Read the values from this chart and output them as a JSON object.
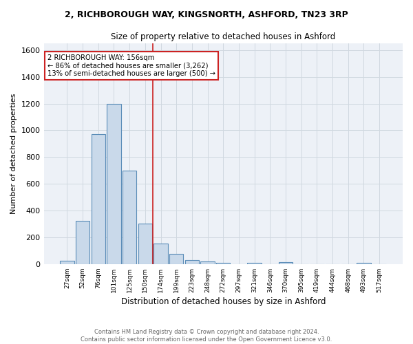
{
  "title_line1": "2, RICHBOROUGH WAY, KINGSNORTH, ASHFORD, TN23 3RP",
  "title_line2": "Size of property relative to detached houses in Ashford",
  "xlabel": "Distribution of detached houses by size in Ashford",
  "ylabel": "Number of detached properties",
  "footer_line1": "Contains HM Land Registry data © Crown copyright and database right 2024.",
  "footer_line2": "Contains public sector information licensed under the Open Government Licence v3.0.",
  "bar_labels": [
    "27sqm",
    "52sqm",
    "76sqm",
    "101sqm",
    "125sqm",
    "150sqm",
    "174sqm",
    "199sqm",
    "223sqm",
    "248sqm",
    "272sqm",
    "297sqm",
    "321sqm",
    "346sqm",
    "370sqm",
    "395sqm",
    "419sqm",
    "444sqm",
    "468sqm",
    "493sqm",
    "517sqm"
  ],
  "bar_values": [
    25,
    325,
    970,
    1200,
    700,
    305,
    155,
    75,
    30,
    18,
    10,
    0,
    10,
    0,
    12,
    0,
    0,
    0,
    0,
    10,
    0
  ],
  "bar_color": "#c9d9ea",
  "bar_edge_color": "#5b8db8",
  "grid_color": "#d0d8e0",
  "background_color": "#edf1f7",
  "vline_x": 5.5,
  "vline_color": "#cc2222",
  "annotation_text": "2 RICHBOROUGH WAY: 156sqm\n← 86% of detached houses are smaller (3,262)\n13% of semi-detached houses are larger (500) →",
  "annotation_box_color": "#ffffff",
  "annotation_box_edge": "#cc2222",
  "ylim": [
    0,
    1650
  ],
  "yticks": [
    0,
    200,
    400,
    600,
    800,
    1000,
    1200,
    1400,
    1600
  ]
}
